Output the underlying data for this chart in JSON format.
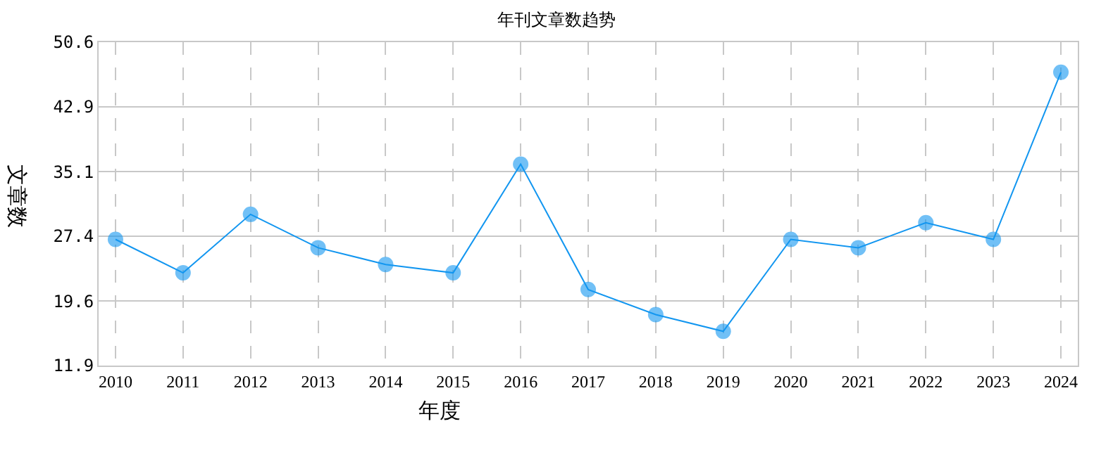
{
  "chart_data": {
    "type": "line",
    "title": "年刊文章数趋势",
    "xlabel": "年度",
    "ylabel": "文章数",
    "categories": [
      "2010",
      "2011",
      "2012",
      "2013",
      "2014",
      "2015",
      "2016",
      "2017",
      "2018",
      "2019",
      "2020",
      "2021",
      "2022",
      "2023",
      "2024"
    ],
    "series": [
      {
        "color": "#1296f0",
        "values": [
          27,
          23,
          30,
          26,
          24,
          23,
          36,
          21,
          18,
          16,
          27,
          26,
          29,
          27,
          47
        ]
      }
    ],
    "ylim": [
      11.9,
      50.6
    ],
    "yticks": [
      11.9,
      19.6,
      27.4,
      35.1,
      42.9,
      50.6
    ],
    "grid": true,
    "marker": "circle",
    "line_style": "solid"
  }
}
